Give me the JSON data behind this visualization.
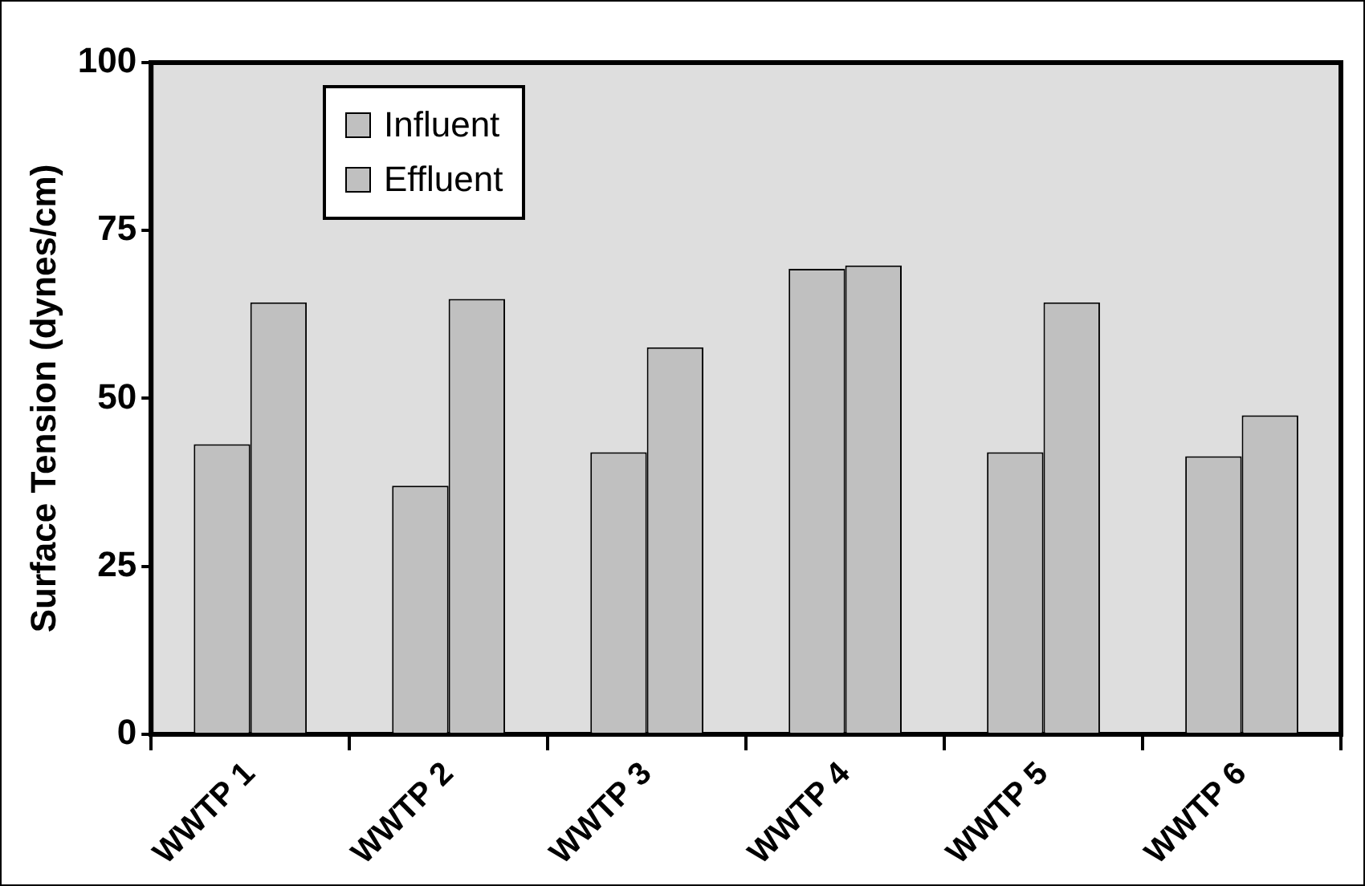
{
  "chart_data": {
    "type": "bar",
    "ylabel": "Surface Tension (dynes/cm)",
    "categories": [
      "WWTP 1",
      "WWTP 2",
      "WWTP 3",
      "WWTP 4",
      "WWTP 5",
      "WWTP 6"
    ],
    "series": [
      {
        "name": "Influent",
        "color": "#c0c0c0",
        "values": [
          43.2,
          37.0,
          42.0,
          69.3,
          42.0,
          41.4
        ]
      },
      {
        "name": "Effluent",
        "color": "#c0c0c0",
        "values": [
          64.3,
          64.8,
          57.6,
          69.8,
          64.3,
          47.5
        ]
      }
    ],
    "ylim": [
      0,
      100
    ],
    "yticks": [
      0,
      25,
      50,
      75,
      100
    ],
    "grid": false,
    "legend": "top left"
  }
}
